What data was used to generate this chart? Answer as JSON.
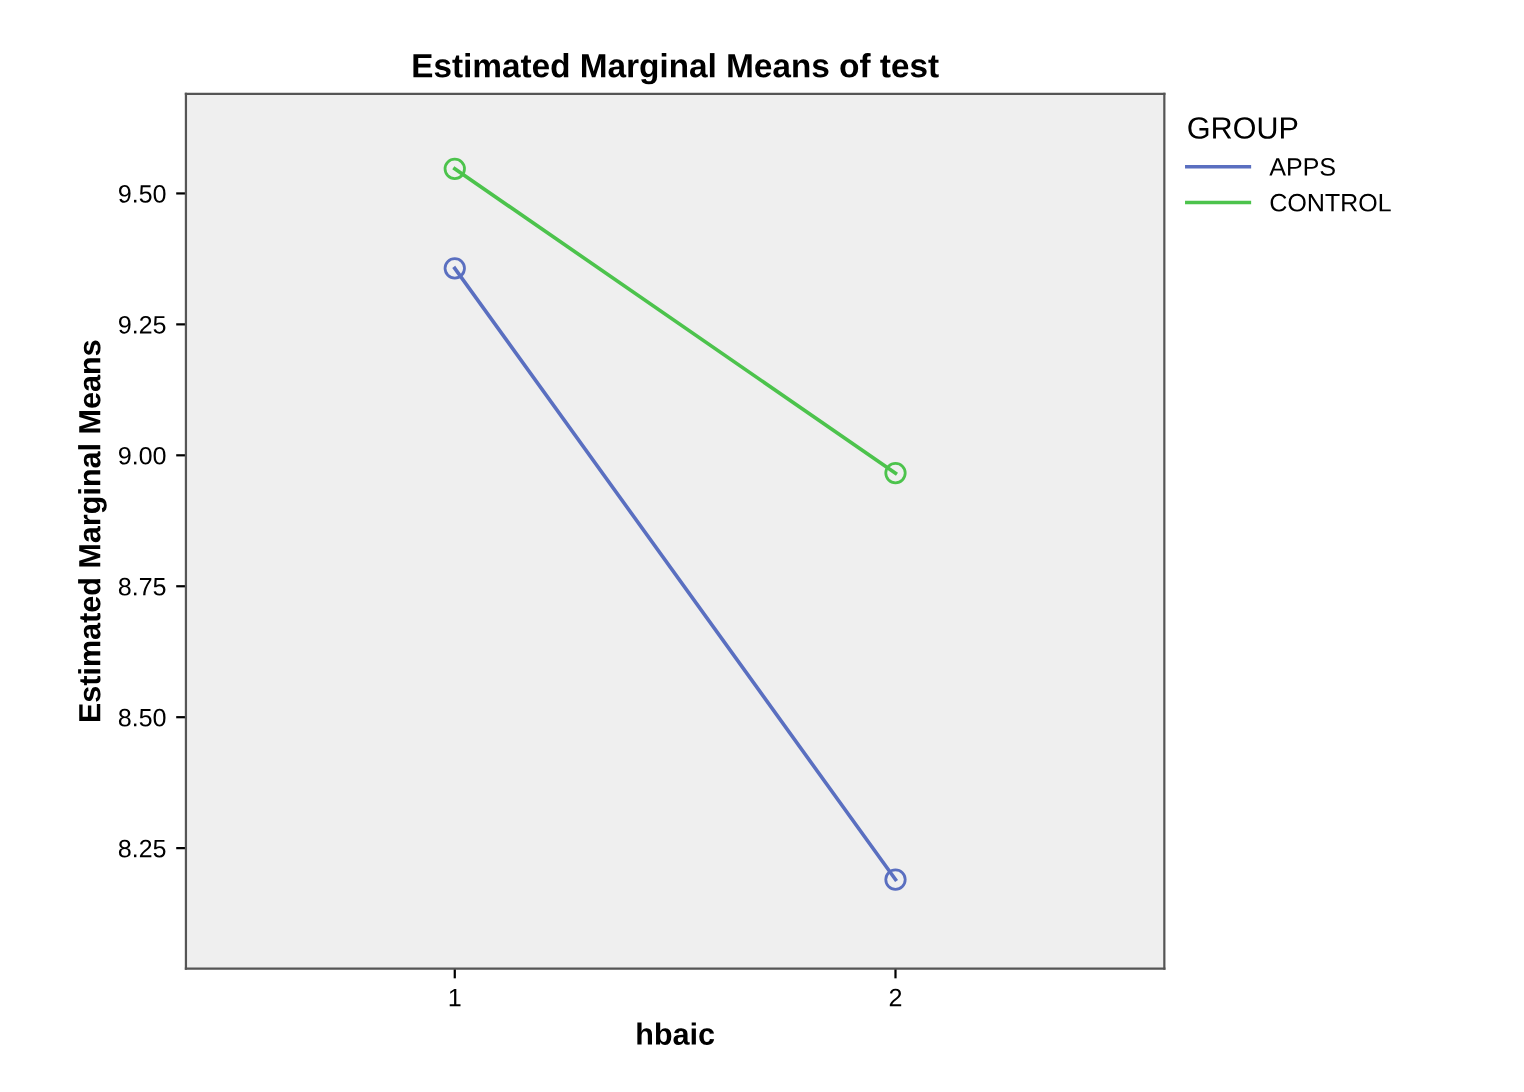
{
  "chart_data": {
    "type": "line",
    "title": "Estimated Marginal Means of test",
    "xlabel": "hbaic",
    "ylabel": "Estimated Marginal Means",
    "legend_title": "GROUP",
    "categories": [
      "1",
      "2"
    ],
    "series": [
      {
        "name": "APPS",
        "color": "#5a6fc0",
        "values": [
          9.357,
          8.19
        ]
      },
      {
        "name": "CONTROL",
        "color": "#4cc34c",
        "values": [
          9.547,
          8.966
        ]
      }
    ],
    "ylim": [
      8.02,
      9.69
    ],
    "yticks": [
      {
        "value": 8.25,
        "label": "8.25"
      },
      {
        "value": 8.5,
        "label": "8.50"
      },
      {
        "value": 8.75,
        "label": "8.75"
      },
      {
        "value": 9.0,
        "label": "9.00"
      },
      {
        "value": 9.25,
        "label": "9.25"
      },
      {
        "value": 9.5,
        "label": "9.50"
      }
    ],
    "grid": false,
    "legend": "right",
    "marker": "circle",
    "line_style": "solid"
  }
}
